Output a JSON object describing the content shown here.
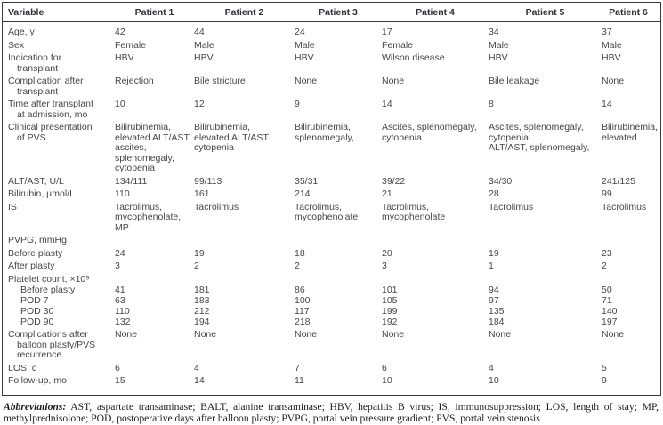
{
  "table": {
    "columns": [
      "Variable",
      "Patient 1",
      "Patient 2",
      "Patient 3",
      "Patient 4",
      "Patient 5",
      "Patient 6"
    ],
    "rows": [
      {
        "label": "Age, y",
        "values": [
          "42",
          "44",
          "24",
          "17",
          "34",
          "37"
        ]
      },
      {
        "label": "Sex",
        "values": [
          "Female",
          "Male",
          "Male",
          "Female",
          "Male",
          "Male"
        ]
      },
      {
        "label": "Indication for\ntransplant",
        "values": [
          "HBV",
          "HBV",
          "HBV",
          "Wilson disease",
          "HBV",
          "HBV"
        ]
      },
      {
        "label": "Complication after\ntransplant",
        "values": [
          "Rejection",
          "Bile stricture",
          "None",
          "None",
          "Bile leakage",
          "None"
        ]
      },
      {
        "label": "Time after transplant\nat admission, mo",
        "values": [
          "10",
          "12",
          "9",
          "14",
          "8",
          "14"
        ]
      },
      {
        "label": "Clinical presentation\nof PVS",
        "values": [
          "Bilirubinemia,\nelevated ALT/AST,\nascites,\nsplenomegaly,\ncytopenia",
          "Bilirubinemia,\nelevated ALT/AST\ncytopenia",
          "Bilirubinemia,\nsplenomegaly,",
          "Ascites, splenomegaly,\ncytopenia",
          "Ascites, splenomegaly,\ncytopenia\nALT/AST, splenomegaly,",
          "Bilirubinemia,\nelevated"
        ]
      },
      {
        "label": "ALT/AST, U/L",
        "values": [
          "134/111",
          "99/113",
          "35/31",
          "39/22",
          "34/30",
          "241/125"
        ]
      },
      {
        "label": "Bilirubin, µmol/L",
        "values": [
          "110",
          "161",
          "214",
          "21",
          "28",
          "99"
        ]
      },
      {
        "label": "IS",
        "values": [
          "Tacrolimus,\nmycophenolate,\nMP",
          "Tacrolimus",
          "Tacrolimus,\nmycophenolate",
          "Tacrolimus,\nmycophenolate",
          "Tacrolimus",
          "Tacrolimus"
        ]
      },
      {
        "label": "PVPG, mmHg",
        "values": [
          "",
          "",
          "",
          "",
          "",
          ""
        ]
      },
      {
        "label": "Before plasty",
        "values": [
          "24",
          "19",
          "18",
          "20",
          "19",
          "23"
        ]
      },
      {
        "label": "After plasty",
        "values": [
          "3",
          "2",
          "2",
          "3",
          "1",
          "2"
        ]
      },
      {
        "label": "Platelet count, ×10⁹",
        "values": [
          "",
          "",
          "",
          "",
          "",
          ""
        ]
      },
      {
        "label": "Before plasty",
        "indent": true,
        "compact": true,
        "values": [
          "41",
          "181",
          "86",
          "101",
          "94",
          "50"
        ]
      },
      {
        "label": "POD 7",
        "indent": true,
        "compact": true,
        "values": [
          "63",
          "183",
          "100",
          "105",
          "97",
          "71"
        ]
      },
      {
        "label": "POD 30",
        "indent": true,
        "compact": true,
        "values": [
          "110",
          "212",
          "117",
          "199",
          "135",
          "140"
        ]
      },
      {
        "label": "POD 90",
        "indent": true,
        "compact": true,
        "values": [
          "132",
          "194",
          "218",
          "192",
          "184",
          "197"
        ]
      },
      {
        "label": "Complications after\nballoon plasty/PVS\nrecurrence",
        "values": [
          "None",
          "None",
          "None",
          "None",
          "None",
          "None"
        ]
      },
      {
        "label": "LOS, d",
        "values": [
          "6",
          "4",
          "7",
          "6",
          "4",
          "5"
        ]
      },
      {
        "label": "Follow-up, mo",
        "values": [
          "15",
          "14",
          "11",
          "10",
          "10",
          "9"
        ]
      }
    ]
  },
  "footnote": {
    "label": "Abbreviations:",
    "text": "AST, aspartate transaminase; BALT, alanine transaminase; HBV, hepatitis B virus; IS, immunosuppression; LOS, length of stay; MP, methylprednisolone; POD, postoperative days after balloon plasty; PVPG, portal vein pressure gradient; PVS, portal vein stenosis"
  },
  "colors": {
    "body_text": "#45464e",
    "header_text": "#303138",
    "border": "#3a3a3c",
    "footnote_text": "#1c1c1c"
  }
}
